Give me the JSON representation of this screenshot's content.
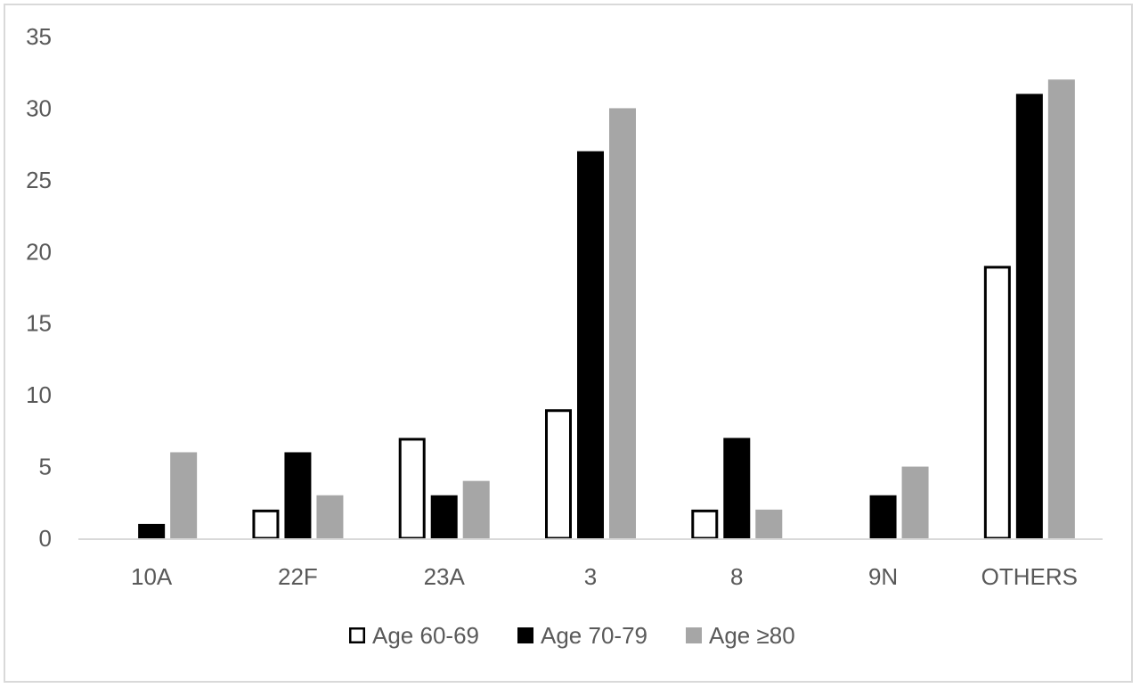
{
  "chart_data": {
    "type": "bar",
    "title": "",
    "xlabel": "",
    "ylabel": "",
    "categories": [
      "10A",
      "22F",
      "23A",
      "3",
      "8",
      "9N",
      "OTHERS"
    ],
    "series": [
      {
        "name": "Age 60-69",
        "values": [
          0,
          2,
          7,
          9,
          2,
          0,
          19
        ],
        "fill": "#ffffff",
        "stroke": "#000000"
      },
      {
        "name": "Age 70-79",
        "values": [
          1,
          6,
          3,
          27,
          7,
          3,
          31
        ],
        "fill": "#000000",
        "stroke": "#000000"
      },
      {
        "name": "Age ≥80",
        "values": [
          6,
          3,
          4,
          30,
          2,
          5,
          32
        ],
        "fill": "#a6a6a6",
        "stroke": "#a6a6a6"
      }
    ],
    "ylim": [
      0,
      35
    ],
    "yticks": [
      "0",
      "5",
      "10",
      "15",
      "20",
      "25",
      "30",
      "35"
    ],
    "ytick_values": [
      0,
      5,
      10,
      15,
      20,
      25,
      30,
      35
    ],
    "grid": false,
    "legend_position": "bottom",
    "colors": {
      "axis": "#d9d9d9",
      "text": "#595959",
      "frame": "#d9d9d9"
    }
  }
}
